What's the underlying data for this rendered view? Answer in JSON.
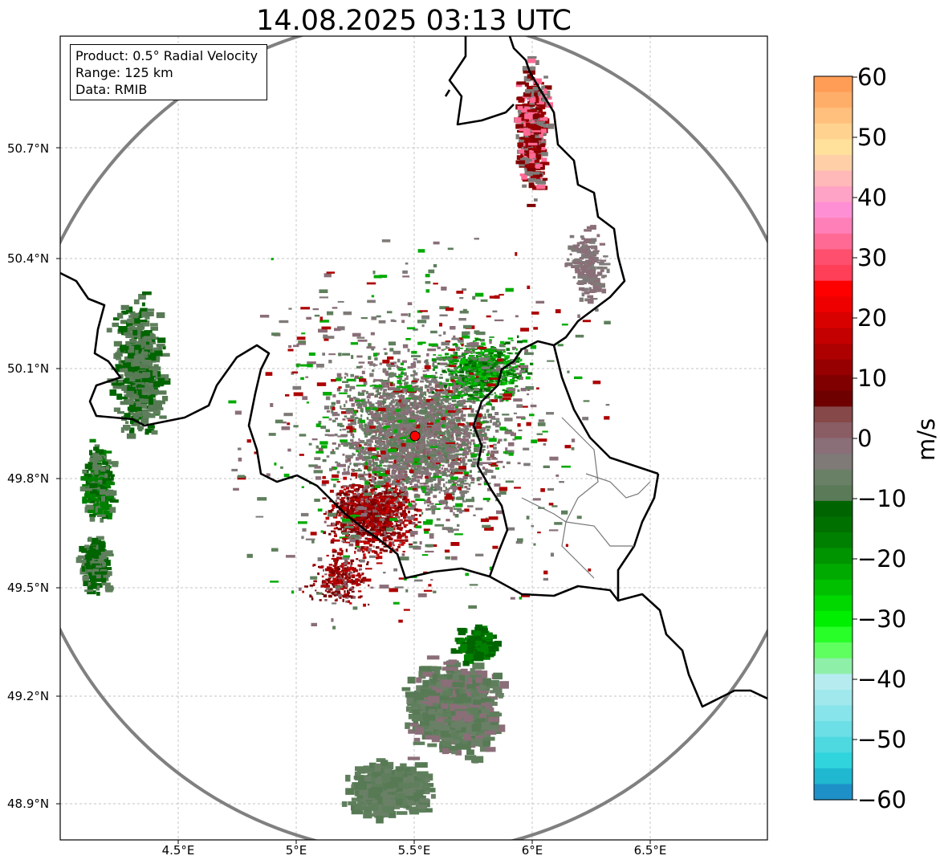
{
  "title": "14.08.2025 03:13 UTC",
  "info": {
    "product": "Product: 0.5° Radial Velocity",
    "range": "Range: 125 km",
    "data": "Data: RMIB"
  },
  "axes": {
    "lat_labels": [
      "50.7°N",
      "50.4°N",
      "50.1°N",
      "49.8°N",
      "49.5°N",
      "49.2°N",
      "48.9°N"
    ],
    "lon_labels": [
      "4.5°E",
      "5°E",
      "5.5°E",
      "6°E",
      "6.5°E"
    ]
  },
  "colorbar": {
    "unit": "m/s",
    "ticks": [
      "60",
      "50",
      "40",
      "30",
      "20",
      "10",
      "0",
      "−10",
      "−20",
      "−30",
      "−40",
      "−50",
      "−60"
    ],
    "min": -60,
    "max": 60,
    "colors_top_to_bottom": [
      "#ff9d57",
      "#ffae6a",
      "#ffc07e",
      "#ffd28f",
      "#ffe19c",
      "#ffd0a8",
      "#ffb9b9",
      "#ffa3c6",
      "#ff8fd4",
      "#ff7fb8",
      "#ff6a94",
      "#ff4f6e",
      "#ff3e58",
      "#ff0000",
      "#ee0000",
      "#d90000",
      "#c40000",
      "#ad0000",
      "#960000",
      "#800000",
      "#6e0000",
      "#864848",
      "#8a5c64",
      "#8a6e78",
      "#7f7a78",
      "#6a8066",
      "#5a7a58",
      "#006400",
      "#007000",
      "#008000",
      "#009400",
      "#00aa00",
      "#00c000",
      "#00d800",
      "#00ee00",
      "#28ff28",
      "#60ff60",
      "#8ef0a8",
      "#b6ecf0",
      "#a0e8ec",
      "#86e4ea",
      "#6cdfe6",
      "#4ed9e0",
      "#30d4dc",
      "#20b8d0",
      "#1e90c8"
    ]
  },
  "radar": {
    "site_marker": "radar-site-red-dot"
  },
  "colors": {
    "range_ring": "#808080",
    "border": "#000000",
    "site": "#ff0000"
  }
}
